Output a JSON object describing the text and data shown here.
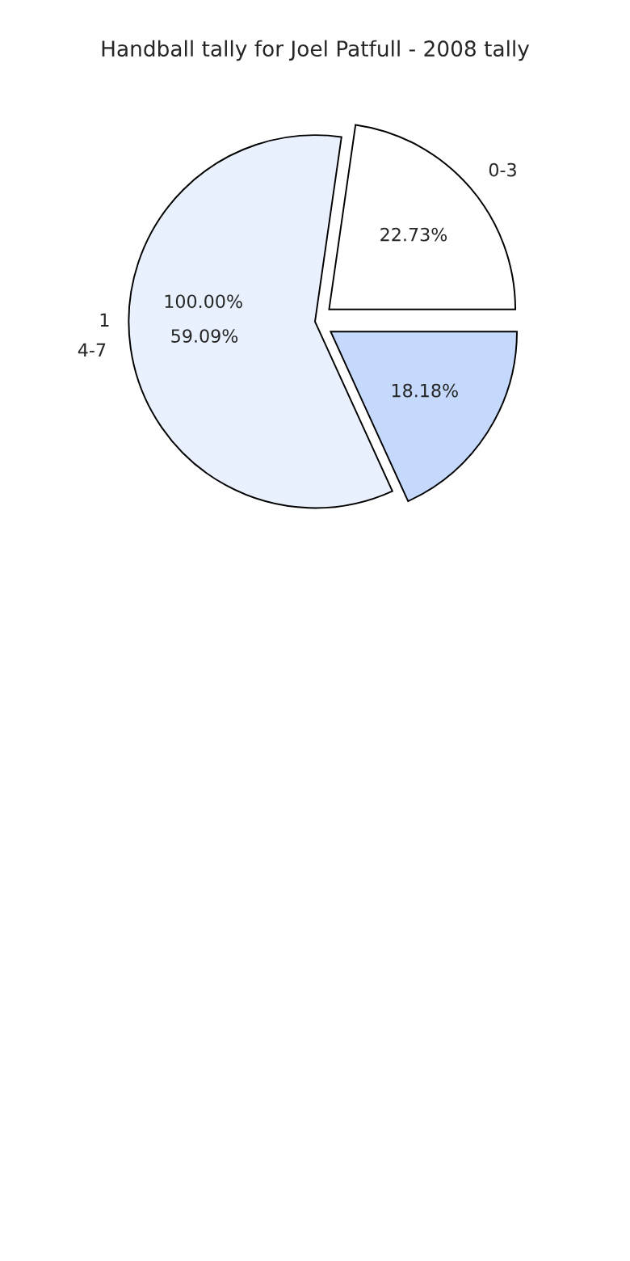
{
  "chart_data": {
    "type": "pie",
    "title": "Handball tally for Joel Patfull - 2008 tally",
    "categories": [
      "0-3",
      "4-7",
      null
    ],
    "values": [
      22.73,
      59.09,
      18.18
    ],
    "colors": [
      "#ffffff",
      "#eaf1fe",
      "#c5d9fc"
    ],
    "value_labels": [
      "22.73%",
      "59.09%",
      "18.18%"
    ],
    "annotations": [
      "1",
      "100.00%"
    ]
  }
}
